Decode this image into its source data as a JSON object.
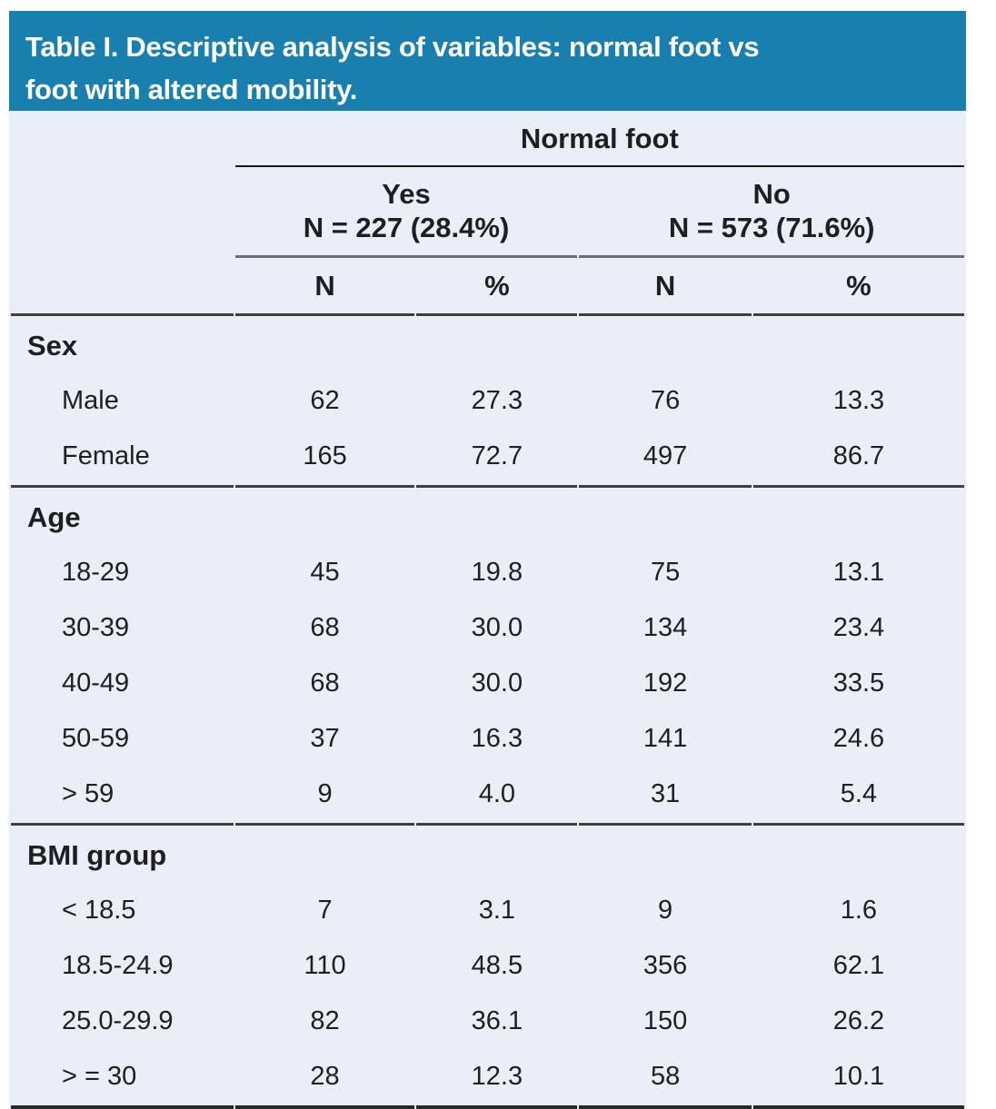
{
  "title_line1": "Table I. Descriptive analysis of variables: normal foot vs",
  "title_line2": "foot with altered mobility.",
  "colors": {
    "header_bg": "#197fae",
    "title_text": "#ffffff",
    "body_bg": "#eaeef6",
    "text": "#1d1f22",
    "rule_black": "#14171a",
    "rule_gray": "#6a6f75",
    "rule_dark": "#3a4046",
    "rule_bottom": "#24282c"
  },
  "header": {
    "group_title": "Normal foot",
    "subgroups": [
      {
        "label": "Yes",
        "n": "N = 227 (28.4%)"
      },
      {
        "label": "No",
        "n": "N = 573 (71.6%)"
      }
    ],
    "columns": [
      "N",
      "%",
      "N",
      "%"
    ]
  },
  "sections": [
    {
      "label": "Sex",
      "rows": [
        {
          "label": "Male",
          "values": [
            "62",
            "27.3",
            "76",
            "13.3"
          ]
        },
        {
          "label": "Female",
          "values": [
            "165",
            "72.7",
            "497",
            "86.7"
          ]
        }
      ]
    },
    {
      "label": "Age",
      "rows": [
        {
          "label": "18-29",
          "values": [
            "45",
            "19.8",
            "75",
            "13.1"
          ]
        },
        {
          "label": "30-39",
          "values": [
            "68",
            "30.0",
            "134",
            "23.4"
          ]
        },
        {
          "label": "40-49",
          "values": [
            "68",
            "30.0",
            "192",
            "33.5"
          ]
        },
        {
          "label": "50-59",
          "values": [
            "37",
            "16.3",
            "141",
            "24.6"
          ]
        },
        {
          "label": "> 59",
          "values": [
            "9",
            "4.0",
            "31",
            "5.4"
          ]
        }
      ]
    },
    {
      "label": "BMI group",
      "rows": [
        {
          "label": "< 18.5",
          "values": [
            "7",
            "3.1",
            "9",
            "1.6"
          ]
        },
        {
          "label": "18.5-24.9",
          "values": [
            "110",
            "48.5",
            "356",
            "62.1"
          ]
        },
        {
          "label": "25.0-29.9",
          "values": [
            "82",
            "36.1",
            "150",
            "26.2"
          ]
        },
        {
          "label": "> = 30",
          "values": [
            "28",
            "12.3",
            "58",
            "10.1"
          ]
        }
      ]
    }
  ]
}
